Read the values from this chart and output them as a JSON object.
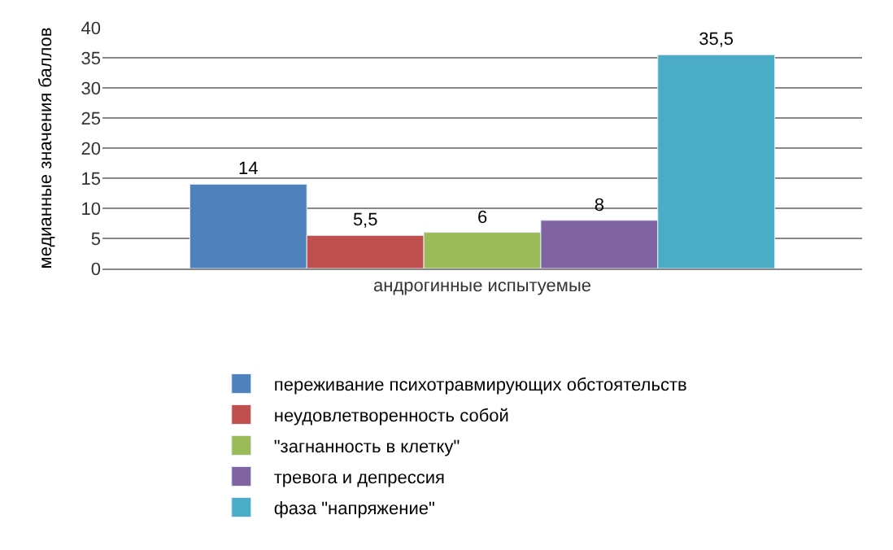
{
  "chart_data": {
    "type": "bar",
    "ylabel": "медианные значения баллов",
    "categories": [
      "андрогинные испытуемые"
    ],
    "series": [
      {
        "name": "переживание психотравмирующих обстоятельств",
        "color": "#4f81bd",
        "values": [
          14
        ],
        "value_labels": [
          "14"
        ]
      },
      {
        "name": "неудовлетворенность собой",
        "color": "#c0504d",
        "values": [
          5.5
        ],
        "value_labels": [
          "5,5"
        ]
      },
      {
        "name": "\"загнанность в клетку\"",
        "color": "#9bbb59",
        "values": [
          6
        ],
        "value_labels": [
          "6"
        ]
      },
      {
        "name": "тревога и депрессия",
        "color": "#8064a2",
        "values": [
          8
        ],
        "value_labels": [
          "8"
        ]
      },
      {
        "name": "фаза \"напряжение\"",
        "color": "#4bacc6",
        "values": [
          35.5
        ],
        "value_labels": [
          "35,5"
        ]
      }
    ],
    "ylim": [
      0,
      40
    ],
    "yticks": [
      0,
      5,
      10,
      15,
      20,
      25,
      30,
      35,
      40
    ],
    "grid": "y",
    "legend": "bottom"
  }
}
